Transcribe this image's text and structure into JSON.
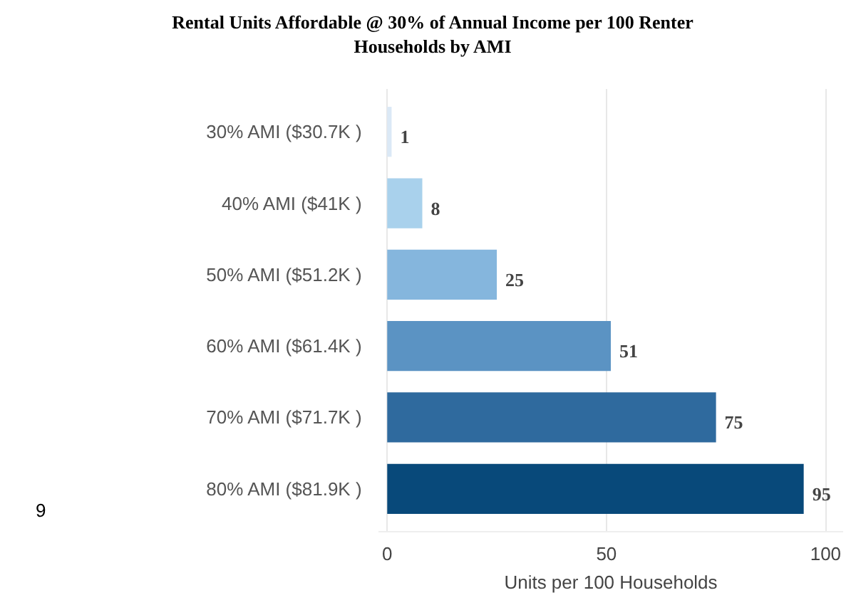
{
  "chart_data": {
    "type": "bar",
    "orientation": "horizontal",
    "title": "Rental Units  Affordable @ 30% of Annual Income per 100 Renter\nHouseholds by AMI",
    "xlabel": "Units per 100 Households",
    "categories": [
      "30% AMI ($30.7K )",
      "40% AMI ($41K )",
      "50% AMI ($51.2K )",
      "60% AMI ($61.4K )",
      "70% AMI ($71.7K )",
      "80% AMI ($81.9K )"
    ],
    "values": [
      1,
      8,
      25,
      51,
      75,
      95
    ],
    "colors": [
      "#dbe9f6",
      "#a9d1ec",
      "#85b6dd",
      "#5b93c3",
      "#2f6a9e",
      "#08497a"
    ],
    "xlim": [
      -2,
      104
    ],
    "xticks": [
      0,
      50,
      100
    ],
    "grid": "x",
    "data_labels": true,
    "annotations": [
      "9"
    ]
  }
}
